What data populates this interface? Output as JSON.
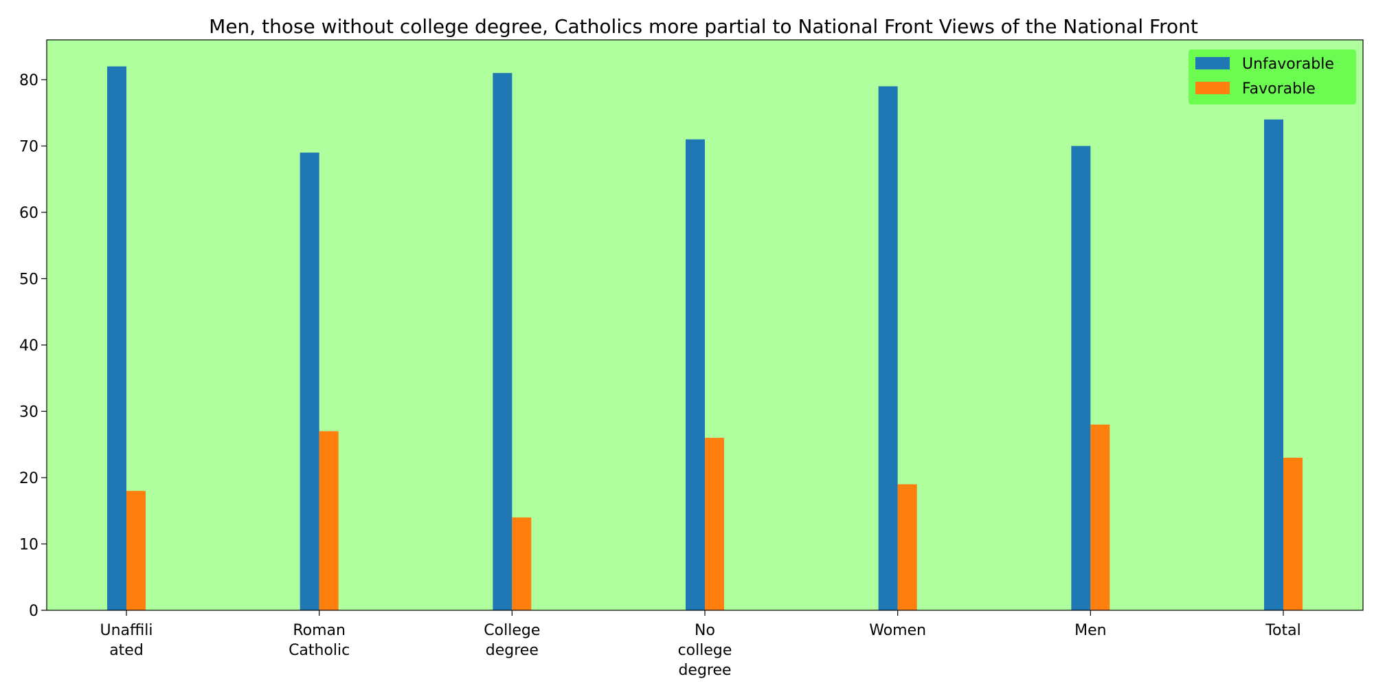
{
  "chart_data": {
    "type": "bar",
    "title": "Men, those without college degree, Catholics more partial to National Front Views of the National Front",
    "xlabel": "",
    "ylabel": "",
    "categories": [
      "Unaffili\nated",
      "Roman\nCatholic",
      "College\ndegree",
      "No\ncollege\ndegree",
      "Women",
      "Men",
      "Total"
    ],
    "series": [
      {
        "name": "Unfavorable",
        "color": "#1f77b4",
        "values": [
          82,
          69,
          81,
          71,
          79,
          70,
          74
        ]
      },
      {
        "name": "Favorable",
        "color": "#ff7f0e",
        "values": [
          18,
          27,
          14,
          26,
          19,
          28,
          23
        ]
      }
    ],
    "ylim": [
      0,
      86
    ],
    "yticks": [
      0,
      10,
      20,
      30,
      40,
      50,
      60,
      70,
      80
    ],
    "grid": false,
    "legend_position": "top-right",
    "colors": {
      "plot_background": "#afff9f",
      "legend_background": "#6cfb50",
      "axis": "#000000"
    }
  }
}
